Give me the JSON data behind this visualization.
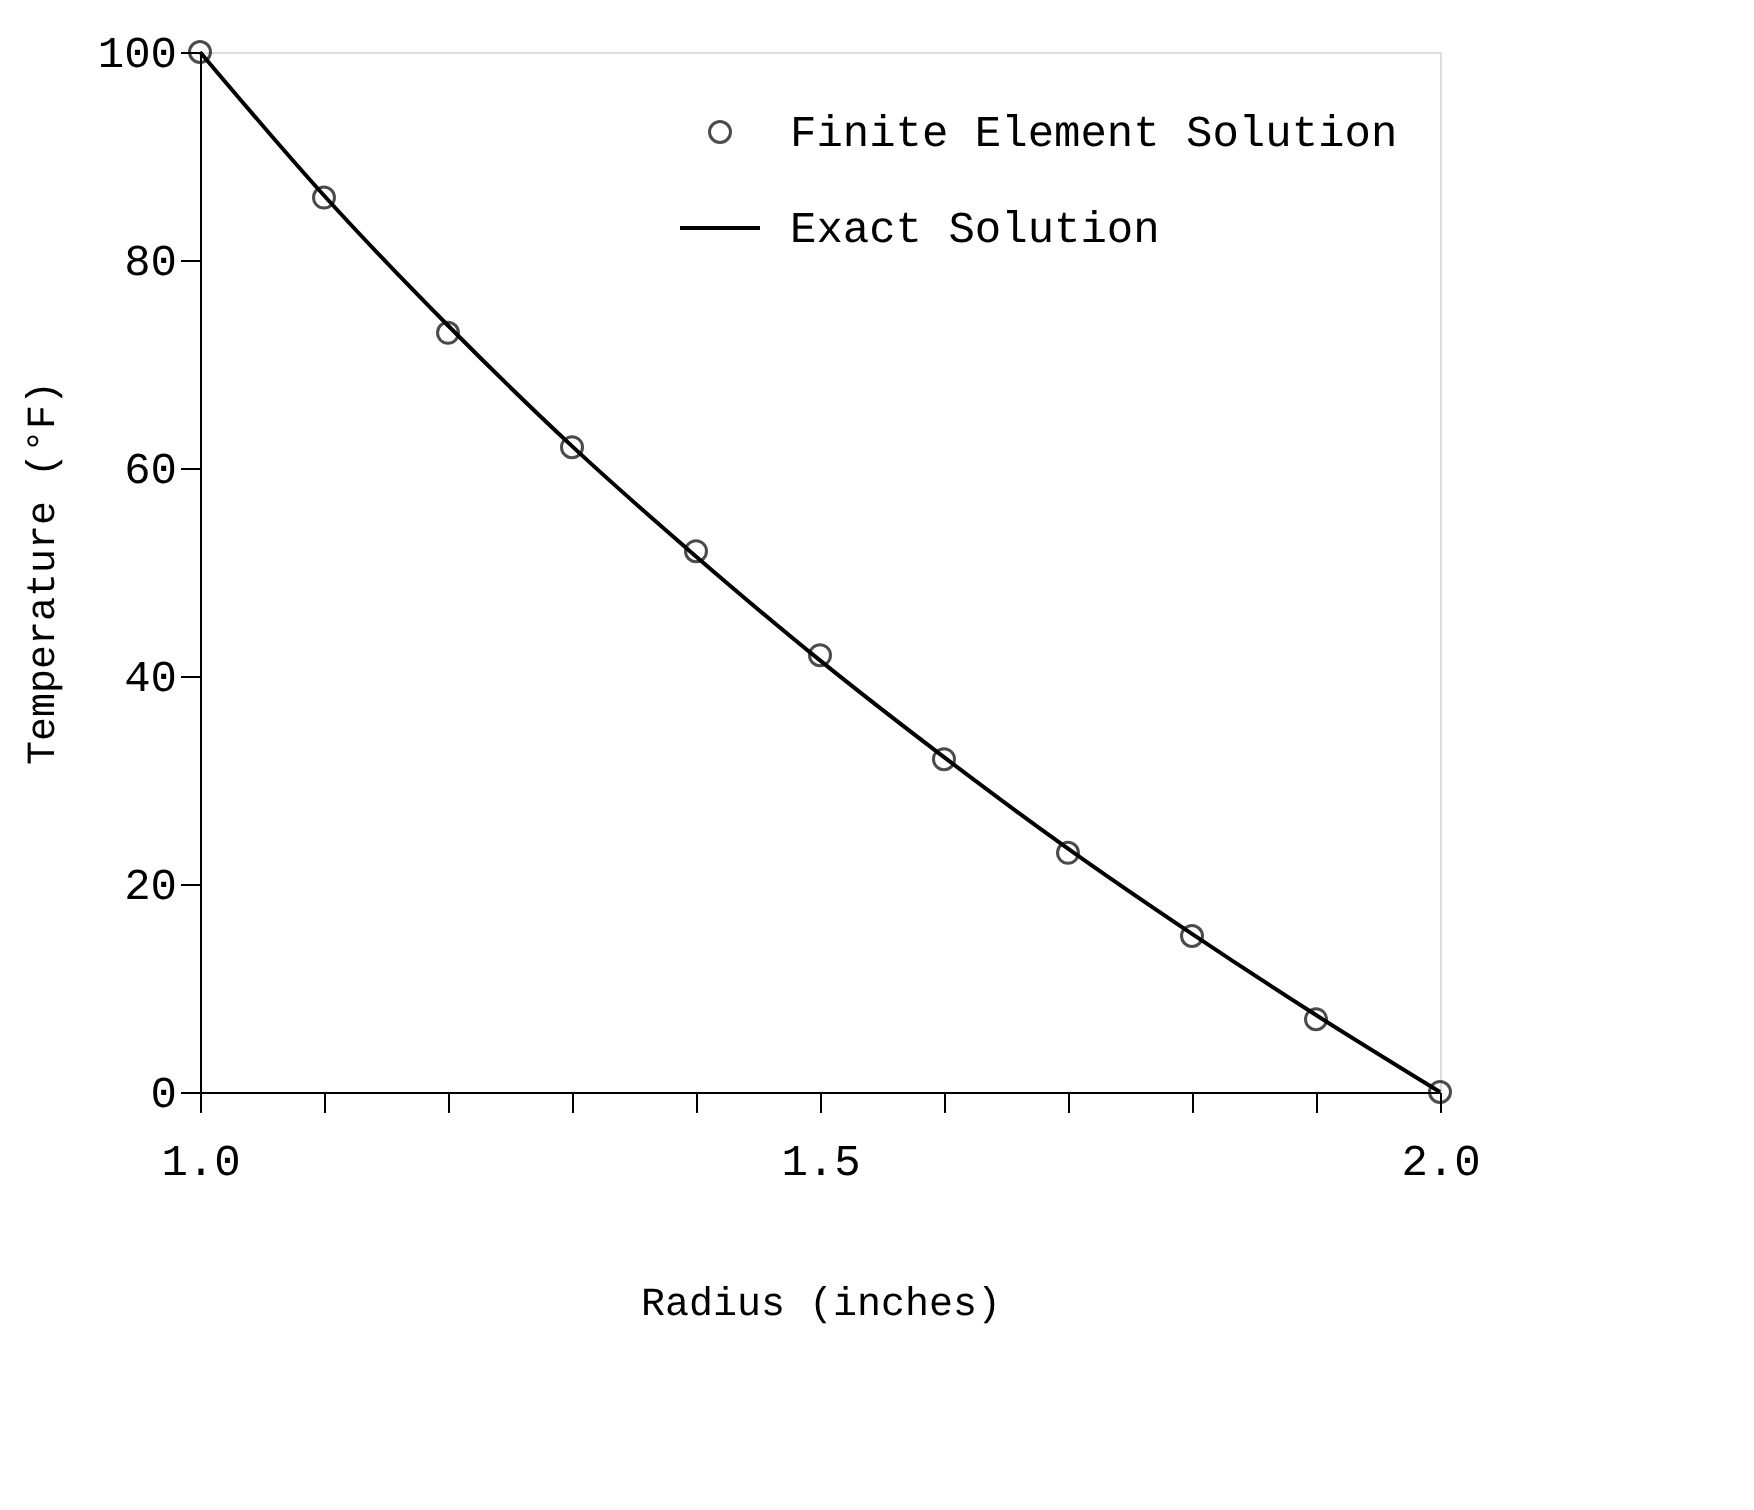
{
  "chart_data": {
    "type": "scatter",
    "xlabel": "Radius (inches)",
    "ylabel": "Temperature (°F)",
    "x": [
      1.0,
      1.1,
      1.2,
      1.3,
      1.4,
      1.5,
      1.6,
      1.7,
      1.8,
      1.9,
      2.0
    ],
    "series": [
      {
        "name": "Finite Element Solution",
        "type": "scatter",
        "marker": "circle",
        "color": "#000000",
        "values": [
          100,
          86,
          73,
          62,
          52,
          42,
          32,
          23,
          15,
          7,
          0
        ]
      },
      {
        "name": "Exact Solution",
        "type": "line",
        "marker": "none",
        "line_style": "solid",
        "color": "#000000",
        "values": [
          100,
          86.2,
          73.7,
          62.1,
          51.5,
          41.5,
          32.2,
          23.4,
          15.2,
          7.4,
          0
        ]
      }
    ],
    "xlim": [
      1.0,
      2.0
    ],
    "xticks": [
      {
        "value": 1.0,
        "label": "1.0"
      },
      {
        "value": 1.1,
        "label": null
      },
      {
        "value": 1.2,
        "label": null
      },
      {
        "value": 1.3,
        "label": null
      },
      {
        "value": 1.4,
        "label": null
      },
      1.5,
      {
        "value": 1.6,
        "label": null
      },
      {
        "value": 1.7,
        "label": null
      },
      {
        "value": 1.8,
        "label": null
      },
      {
        "value": 1.9,
        "label": null
      },
      {
        "value": 2.0,
        "label": "2.0"
      }
    ],
    "ylim": [
      0,
      100
    ],
    "yticks": [
      0,
      20,
      40,
      60,
      80,
      100
    ],
    "grid": false,
    "legend": "top right"
  }
}
